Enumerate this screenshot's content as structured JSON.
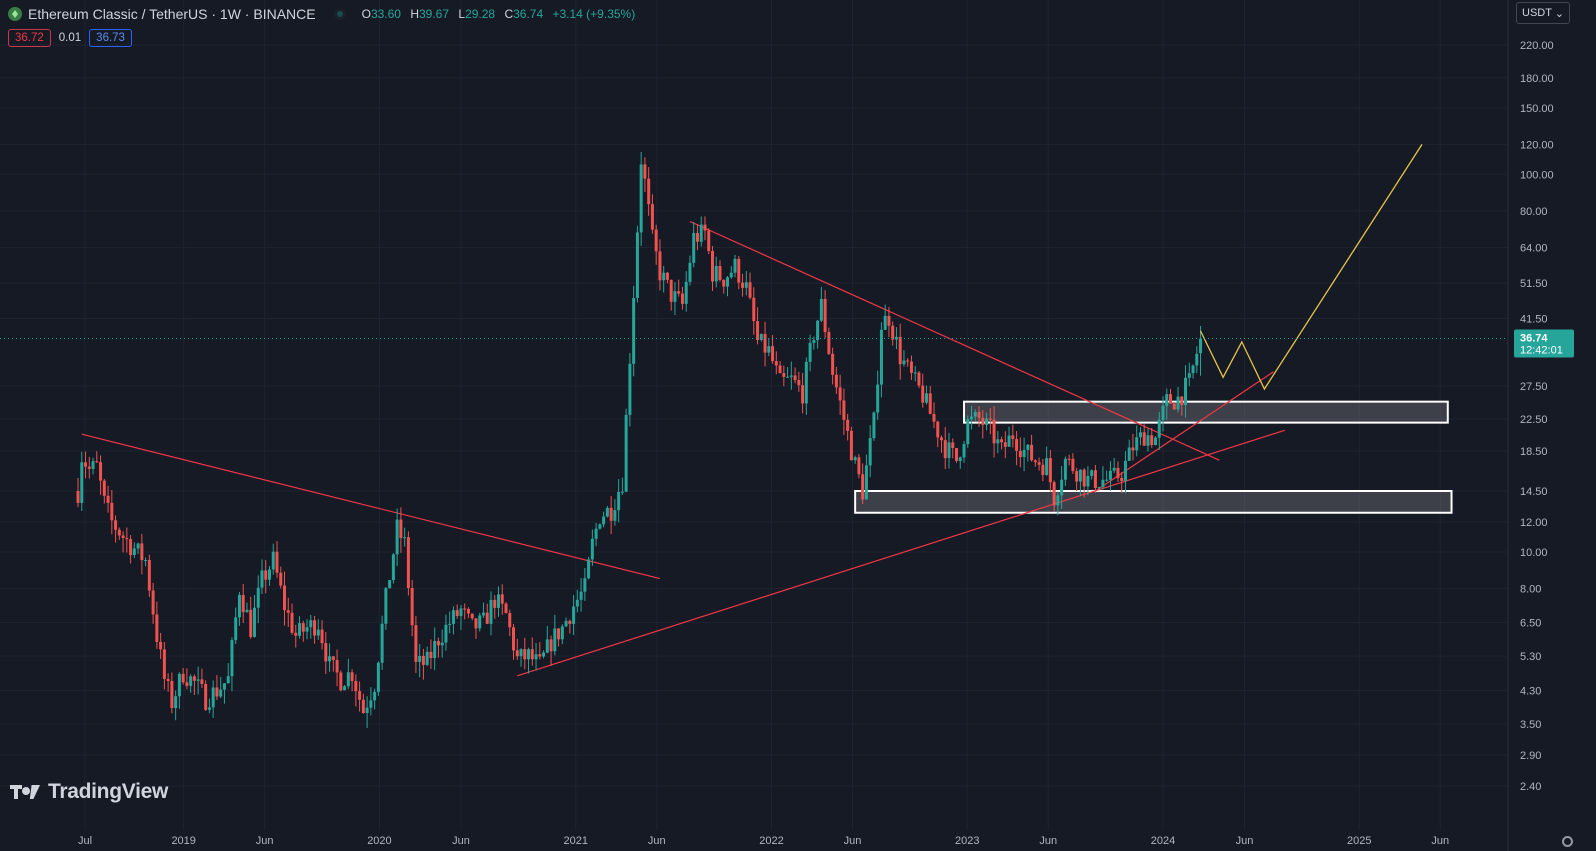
{
  "header": {
    "title": "Ethereum Classic / TetherUS · 1W · BINANCE",
    "ohlc": [
      {
        "k": "O",
        "v": "33.60"
      },
      {
        "k": "H",
        "v": "39.67"
      },
      {
        "k": "L",
        "v": "29.28"
      },
      {
        "k": "C",
        "v": "36.74"
      }
    ],
    "change": "+3.14 (+9.35%)"
  },
  "prices": {
    "sell": "36.72",
    "spread": "0.01",
    "buy": "36.73"
  },
  "currency": {
    "label": "USDT",
    "chevron": "⌄"
  },
  "branding": {
    "text": "TradingView"
  },
  "colors": {
    "up": "#26a69a",
    "down": "#ef5350",
    "trendline": "#f23645",
    "projection": "#e8c547",
    "background": "#161a25"
  },
  "chart_data": {
    "type": "candlestick",
    "symbol": "ETCUSDT",
    "interval": "1W",
    "scale": "log",
    "ylim": [
      2.2,
      260
    ],
    "y_ticks": [
      "220.00",
      "180.00",
      "150.00",
      "120.00",
      "100.00",
      "80.00",
      "64.00",
      "51.50",
      "41.50",
      "27.50",
      "22.50",
      "18.50",
      "14.50",
      "12.00",
      "10.00",
      "8.00",
      "6.50",
      "5.30",
      "4.30",
      "3.50",
      "2.90",
      "2.40"
    ],
    "x_ticks": [
      {
        "date": "2018-07-01",
        "label": "Jul"
      },
      {
        "date": "2019-01-01",
        "label": "2019"
      },
      {
        "date": "2019-06-01",
        "label": "Jun"
      },
      {
        "date": "2020-01-01",
        "label": "2020"
      },
      {
        "date": "2020-06-01",
        "label": "Jun"
      },
      {
        "date": "2021-01-01",
        "label": "2021"
      },
      {
        "date": "2021-06-01",
        "label": "Jun"
      },
      {
        "date": "2022-01-01",
        "label": "2022"
      },
      {
        "date": "2022-06-01",
        "label": "Jun"
      },
      {
        "date": "2023-01-01",
        "label": "2023"
      },
      {
        "date": "2023-06-01",
        "label": "Jun"
      },
      {
        "date": "2024-01-01",
        "label": "2024"
      },
      {
        "date": "2024-06-01",
        "label": "Jun"
      },
      {
        "date": "2025-01-01",
        "label": "2025"
      },
      {
        "date": "2025-06-01",
        "label": "Jun"
      }
    ],
    "last_price": {
      "value": 36.74,
      "label": "36.74",
      "countdown": "12:42:01"
    },
    "price_path": [
      [
        "2018-06-18",
        14.5
      ],
      [
        "2018-06-25",
        18.0
      ],
      [
        "2018-07-09",
        16.5
      ],
      [
        "2018-07-23",
        16.8
      ],
      [
        "2018-08-06",
        13.5
      ],
      [
        "2018-08-20",
        12.0
      ],
      [
        "2018-09-10",
        11.0
      ],
      [
        "2018-10-01",
        10.2
      ],
      [
        "2018-10-22",
        9.5
      ],
      [
        "2018-11-12",
        6.0
      ],
      [
        "2018-11-26",
        4.6
      ],
      [
        "2018-12-10",
        4.0
      ],
      [
        "2018-12-31",
        4.8
      ],
      [
        "2019-01-21",
        4.5
      ],
      [
        "2019-02-11",
        4.1
      ],
      [
        "2019-03-04",
        4.3
      ],
      [
        "2019-03-25",
        4.6
      ],
      [
        "2019-04-15",
        8.0
      ],
      [
        "2019-05-06",
        6.3
      ],
      [
        "2019-05-27",
        8.4
      ],
      [
        "2019-06-17",
        9.5
      ],
      [
        "2019-07-08",
        7.2
      ],
      [
        "2019-07-29",
        6.0
      ],
      [
        "2019-08-19",
        6.3
      ],
      [
        "2019-09-09",
        6.5
      ],
      [
        "2019-09-30",
        5.0
      ],
      [
        "2019-10-21",
        4.6
      ],
      [
        "2019-11-11",
        4.8
      ],
      [
        "2019-12-02",
        3.8
      ],
      [
        "2019-12-23",
        4.5
      ],
      [
        "2020-01-13",
        7.5
      ],
      [
        "2020-02-03",
        11.5
      ],
      [
        "2020-02-17",
        10.5
      ],
      [
        "2020-03-09",
        5.0
      ],
      [
        "2020-03-30",
        5.1
      ],
      [
        "2020-04-20",
        5.9
      ],
      [
        "2020-05-11",
        6.5
      ],
      [
        "2020-06-01",
        7.0
      ],
      [
        "2020-06-22",
        6.3
      ],
      [
        "2020-07-13",
        6.5
      ],
      [
        "2020-08-03",
        7.5
      ],
      [
        "2020-08-24",
        6.8
      ],
      [
        "2020-09-14",
        5.2
      ],
      [
        "2020-10-05",
        5.3
      ],
      [
        "2020-10-26",
        5.0
      ],
      [
        "2020-11-16",
        5.8
      ],
      [
        "2020-12-07",
        6.3
      ],
      [
        "2020-12-28",
        7.2
      ],
      [
        "2021-01-18",
        8.0
      ],
      [
        "2021-02-01",
        10.5
      ],
      [
        "2021-02-15",
        12.5
      ],
      [
        "2021-03-08",
        13.0
      ],
      [
        "2021-03-29",
        15.5
      ],
      [
        "2021-04-12",
        33.0
      ],
      [
        "2021-04-26",
        72.0
      ],
      [
        "2021-05-03",
        110.0
      ],
      [
        "2021-05-10",
        95.0
      ],
      [
        "2021-05-24",
        67.0
      ],
      [
        "2021-06-07",
        55.0
      ],
      [
        "2021-06-28",
        48.0
      ],
      [
        "2021-07-19",
        45.0
      ],
      [
        "2021-08-09",
        68.0
      ],
      [
        "2021-08-30",
        70.0
      ],
      [
        "2021-09-13",
        55.0
      ],
      [
        "2021-10-04",
        53.0
      ],
      [
        "2021-10-25",
        57.0
      ],
      [
        "2021-11-15",
        50.0
      ],
      [
        "2021-12-06",
        36.0
      ],
      [
        "2021-12-27",
        34.0
      ],
      [
        "2022-01-17",
        28.0
      ],
      [
        "2022-02-07",
        28.5
      ],
      [
        "2022-02-28",
        26.5
      ],
      [
        "2022-03-21",
        38.0
      ],
      [
        "2022-04-04",
        45.0
      ],
      [
        "2022-04-25",
        30.0
      ],
      [
        "2022-05-16",
        22.5
      ],
      [
        "2022-06-06",
        17.0
      ],
      [
        "2022-06-20",
        14.5
      ],
      [
        "2022-07-11",
        22.0
      ],
      [
        "2022-07-25",
        40.0
      ],
      [
        "2022-08-08",
        42.0
      ],
      [
        "2022-08-29",
        33.0
      ],
      [
        "2022-09-19",
        29.0
      ],
      [
        "2022-10-10",
        26.0
      ],
      [
        "2022-10-31",
        22.0
      ],
      [
        "2022-11-21",
        19.0
      ],
      [
        "2022-12-12",
        17.5
      ],
      [
        "2023-01-02",
        22.0
      ],
      [
        "2023-01-23",
        22.5
      ],
      [
        "2023-02-13",
        21.0
      ],
      [
        "2023-03-06",
        18.5
      ],
      [
        "2023-03-27",
        20.5
      ],
      [
        "2023-04-17",
        18.5
      ],
      [
        "2023-05-08",
        17.5
      ],
      [
        "2023-05-29",
        17.0
      ],
      [
        "2023-06-12",
        14.0
      ],
      [
        "2023-07-03",
        17.5
      ],
      [
        "2023-07-24",
        16.5
      ],
      [
        "2023-08-14",
        15.5
      ],
      [
        "2023-09-04",
        15.5
      ],
      [
        "2023-09-25",
        15.5
      ],
      [
        "2023-10-16",
        16.2
      ],
      [
        "2023-11-06",
        19.0
      ],
      [
        "2023-11-27",
        20.5
      ],
      [
        "2023-12-18",
        20.0
      ],
      [
        "2024-01-08",
        25.0
      ],
      [
        "2024-01-29",
        25.5
      ],
      [
        "2024-02-19",
        28.0
      ],
      [
        "2024-03-04",
        33.6
      ],
      [
        "2024-03-11",
        36.74
      ]
    ],
    "trendlines": [
      {
        "from": [
          "2018-06-25",
          20.5
        ],
        "to": [
          "2021-06-07",
          8.5
        ]
      },
      {
        "from": [
          "2020-09-14",
          4.7
        ],
        "to": [
          "2024-08-15",
          21.0
        ]
      },
      {
        "from": [
          "2021-08-02",
          75.0
        ],
        "to": [
          "2024-04-15",
          17.5
        ]
      },
      {
        "from": [
          "2023-08-28",
          14.5
        ],
        "to": [
          "2024-07-25",
          30.0
        ]
      }
    ],
    "zones": [
      {
        "from": [
          "2022-12-26",
          25.0
        ],
        "to": [
          "2025-06-15",
          22.0
        ]
      },
      {
        "from": [
          "2022-06-06",
          14.5
        ],
        "to": [
          "2025-06-22",
          12.7
        ]
      }
    ],
    "projection": [
      [
        "2024-03-11",
        38.5
      ],
      [
        "2024-04-22",
        29.0
      ],
      [
        "2024-05-27",
        36.0
      ],
      [
        "2024-07-08",
        27.0
      ],
      [
        "2025-04-28",
        120.0
      ]
    ]
  }
}
